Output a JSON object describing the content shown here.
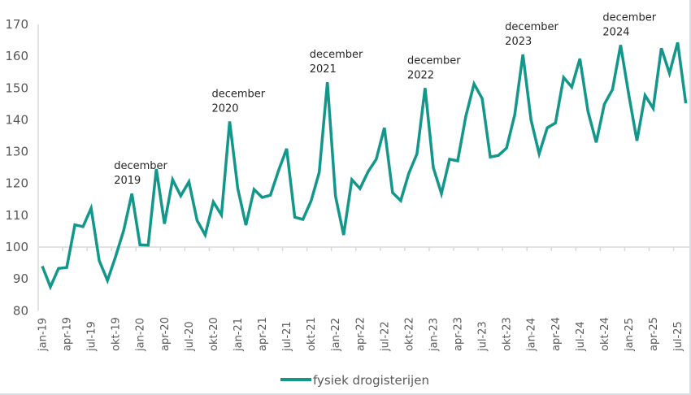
{
  "chart_data": {
    "type": "line",
    "title": "",
    "xlabel": "",
    "ylabel": "",
    "ylim": [
      80,
      170
    ],
    "yticks": [
      80,
      90,
      100,
      110,
      120,
      130,
      140,
      150,
      160,
      170
    ],
    "grid": "horizontal line at 100 only",
    "legend_position": "bottom-center",
    "x": [
      "jan-19",
      "feb-19",
      "mrt-19",
      "apr-19",
      "mei-19",
      "jun-19",
      "jul-19",
      "aug-19",
      "sep-19",
      "okt-19",
      "nov-19",
      "dec-19",
      "jan-20",
      "feb-20",
      "mrt-20",
      "apr-20",
      "mei-20",
      "jun-20",
      "jul-20",
      "aug-20",
      "sep-20",
      "okt-20",
      "nov-20",
      "dec-20",
      "jan-21",
      "feb-21",
      "mrt-21",
      "apr-21",
      "mei-21",
      "jun-21",
      "jul-21",
      "aug-21",
      "sep-21",
      "okt-21",
      "nov-21",
      "dec-21",
      "jan-22",
      "feb-22",
      "mrt-22",
      "apr-22",
      "mei-22",
      "jun-22",
      "jul-22",
      "aug-22",
      "sep-22",
      "okt-22",
      "nov-22",
      "dec-22",
      "jan-23",
      "feb-23",
      "mrt-23",
      "apr-23",
      "mei-23",
      "jun-23",
      "jul-23",
      "aug-23",
      "sep-23",
      "okt-23",
      "nov-23",
      "dec-23",
      "jan-24",
      "feb-24",
      "mrt-24",
      "apr-24",
      "mei-24",
      "jun-24",
      "jul-24",
      "aug-24",
      "sep-24",
      "okt-24",
      "nov-24",
      "dec-24",
      "jan-25",
      "feb-25",
      "mrt-25",
      "apr-25",
      "mei-25",
      "jun-25",
      "jul-25",
      "aug-25"
    ],
    "xtick_labels": [
      "jan-19",
      "apr-19",
      "jul-19",
      "okt-19",
      "jan-20",
      "apr-20",
      "jul-20",
      "okt-20",
      "jan-21",
      "apr-21",
      "jul-21",
      "okt-21",
      "jan-22",
      "apr-22",
      "jul-22",
      "okt-22",
      "jan-23",
      "apr-23",
      "jul-23",
      "okt-23",
      "jan-24",
      "apr-24",
      "jul-24",
      "okt-24",
      "jan-25",
      "apr-25",
      "jul-25"
    ],
    "series": [
      {
        "name": "fysiek drogisterijen",
        "color": "#12978a",
        "values": [
          94.0,
          87.5,
          93.3,
          93.6,
          107.0,
          106.4,
          112.2,
          95.7,
          89.5,
          97.0,
          105.3,
          116.8,
          100.7,
          100.6,
          124.5,
          107.3,
          121.2,
          116.1,
          120.5,
          108.4,
          103.8,
          114.2,
          110.1,
          139.5,
          118.4,
          106.9,
          118.1,
          115.6,
          116.3,
          124.0,
          130.9,
          109.4,
          108.7,
          114.5,
          123.5,
          151.8,
          116.0,
          103.8,
          121.2,
          118.4,
          123.7,
          127.6,
          137.5,
          117.1,
          114.6,
          123.2,
          129.3,
          150.0,
          125.0,
          116.8,
          127.6,
          127.1,
          141.1,
          151.3,
          146.7,
          128.3,
          128.8,
          131.1,
          141.6,
          160.5,
          140.0,
          129.3,
          137.5,
          139.0,
          153.3,
          150.3,
          159.2,
          142.6,
          132.9,
          144.9,
          149.5,
          163.5,
          148.0,
          133.4,
          147.7,
          143.6,
          162.5,
          154.6,
          164.3,
          145.2
        ]
      }
    ],
    "annotations": [
      {
        "line1": "december",
        "line2": "2019",
        "at": "dec-19"
      },
      {
        "line1": "december",
        "line2": "2020",
        "at": "dec-20"
      },
      {
        "line1": "december",
        "line2": "2021",
        "at": "dec-21"
      },
      {
        "line1": "december",
        "line2": "2022",
        "at": "dec-22"
      },
      {
        "line1": "december",
        "line2": "2023",
        "at": "dec-23"
      },
      {
        "line1": "december",
        "line2": "2024",
        "at": "dec-24"
      }
    ]
  }
}
